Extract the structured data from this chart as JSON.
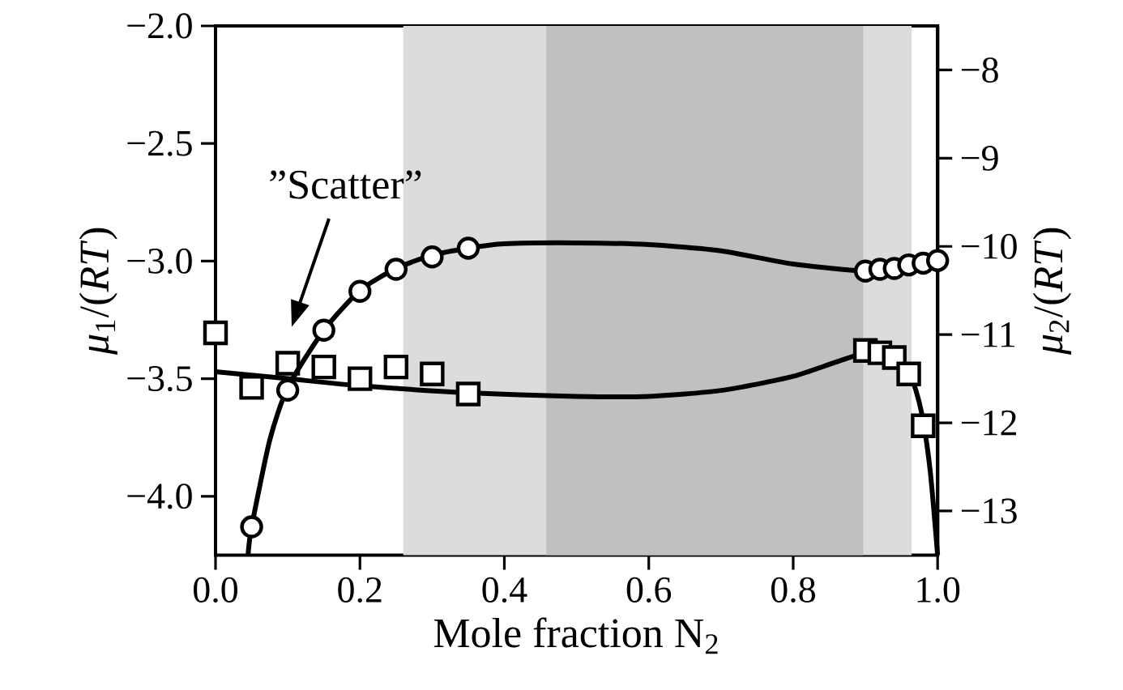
{
  "chart_data": {
    "type": "scatter",
    "xlabel": "Mole fraction N$_{2}$",
    "ylabel": "*μ*$_{1}$/(*RT*)",
    "y2label": "*μ*$_{2}$/(*RT*)",
    "xlim": [
      0,
      1
    ],
    "xticks": [
      {
        "value": 0,
        "label": "0.0"
      },
      0.2,
      0.4,
      0.6,
      0.8,
      {
        "value": 1,
        "label": "1.0"
      }
    ],
    "ylim": [
      -4.25,
      -2.0
    ],
    "yticks": [
      {
        "value": -4.0,
        "label": "−4.0"
      },
      {
        "value": -3.5,
        "label": "−3.5"
      },
      {
        "value": -3.0,
        "label": "−3.0"
      },
      {
        "value": -2.5,
        "label": "−2.5"
      },
      {
        "value": -2.0,
        "label": "−2.0"
      }
    ],
    "y2lim": [
      -13.5,
      -7.5
    ],
    "y2ticks": [
      {
        "value": -13,
        "label": "−13"
      },
      {
        "value": -12,
        "label": "−12"
      },
      {
        "value": -11,
        "label": "−11"
      },
      {
        "value": -10,
        "label": "−10"
      },
      {
        "value": -9,
        "label": "−9"
      },
      {
        "value": -8,
        "label": "−8"
      }
    ],
    "bands": [
      {
        "axis": "x",
        "from": 0.26,
        "to": 0.964,
        "color": "#dcdcdc"
      },
      {
        "axis": "x",
        "from": 0.458,
        "to": 0.897,
        "color": "#c0c0c0"
      }
    ],
    "series": [
      {
        "type": "line",
        "color": "#000000",
        "line_style": "solid",
        "x": [
          0,
          0.1,
          0.2,
          0.35,
          0.5,
          0.6,
          0.7,
          0.8,
          0.9,
          0.94,
          0.96,
          0.97,
          0.98,
          0.99,
          1.0
        ],
        "values": [
          -3.47,
          -3.5,
          -3.53,
          -3.56,
          -3.575,
          -3.575,
          -3.55,
          -3.49,
          -3.39,
          -3.42,
          -3.48,
          -3.55,
          -3.68,
          -3.9,
          -4.25
        ]
      },
      {
        "type": "line",
        "color": "#000000",
        "line_style": "solid",
        "axis": "y2",
        "x": [
          0.045,
          0.05,
          0.075,
          0.1,
          0.15,
          0.2,
          0.25,
          0.3,
          0.35,
          0.4,
          0.5,
          0.6,
          0.7,
          0.8,
          0.9,
          0.95,
          1.0
        ],
        "values": [
          -13.5,
          -13.18,
          -12.2,
          -11.6,
          -10.95,
          -10.5,
          -10.25,
          -10.1,
          -10.02,
          -9.97,
          -9.96,
          -9.98,
          -10.05,
          -10.2,
          -10.28,
          -10.24,
          -10.16
        ]
      },
      {
        "marker": "square",
        "color": "#000000",
        "x": [
          0,
          0.05,
          0.1,
          0.15,
          0.2,
          0.25,
          0.3,
          0.35,
          0.9,
          0.92,
          0.94,
          0.96,
          0.98
        ],
        "values": [
          -3.305,
          -3.537,
          -3.434,
          -3.45,
          -3.5,
          -3.45,
          -3.48,
          -3.565,
          -3.38,
          -3.39,
          -3.41,
          -3.48,
          -3.7
        ],
        "errors": [
          null,
          0.05,
          0.05,
          null,
          0.04,
          null,
          null,
          0.04,
          null,
          null,
          null,
          null,
          null
        ]
      },
      {
        "marker": "circle",
        "color": "#000000",
        "axis": "y2",
        "x": [
          0.05,
          0.1,
          0.15,
          0.2,
          0.25,
          0.3,
          0.35,
          0.9,
          0.92,
          0.94,
          0.96,
          0.98,
          1.0
        ],
        "values": [
          -13.18,
          -11.63,
          -10.95,
          -10.51,
          -10.26,
          -10.12,
          -10.02,
          -10.28,
          -10.26,
          -10.25,
          -10.21,
          -10.19,
          -10.16
        ]
      }
    ],
    "annotations": [
      "”Scatter”"
    ]
  }
}
